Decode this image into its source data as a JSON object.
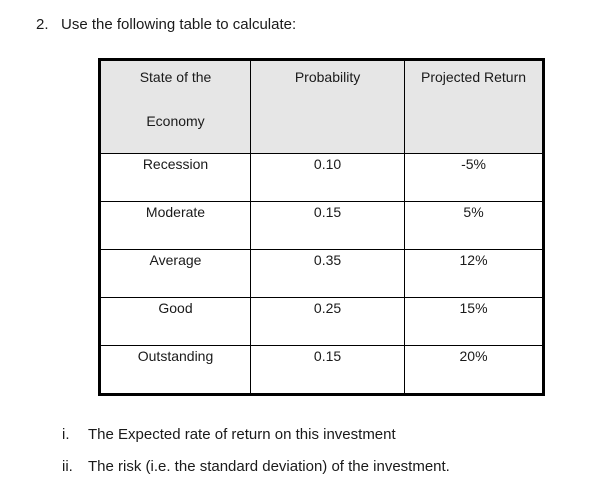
{
  "question": {
    "number": "2.",
    "text": "Use the following table to calculate:"
  },
  "table": {
    "headers": {
      "state_line1": "State of the",
      "state_line2": "Economy",
      "probability": "Probability",
      "projected_return": "Projected Return"
    },
    "rows": [
      {
        "state": "Recession",
        "probability": "0.10",
        "return": "-5%"
      },
      {
        "state": "Moderate",
        "probability": "0.15",
        "return": "5%"
      },
      {
        "state": "Average",
        "probability": "0.35",
        "return": "12%"
      },
      {
        "state": "Good",
        "probability": "0.25",
        "return": "15%"
      },
      {
        "state": "Outstanding",
        "probability": "0.15",
        "return": "20%"
      }
    ]
  },
  "subquestions": [
    {
      "marker": "i.",
      "text": "The Expected rate of return on this investment"
    },
    {
      "marker": "ii.",
      "text": "The risk (i.e. the standard deviation) of the investment."
    }
  ]
}
